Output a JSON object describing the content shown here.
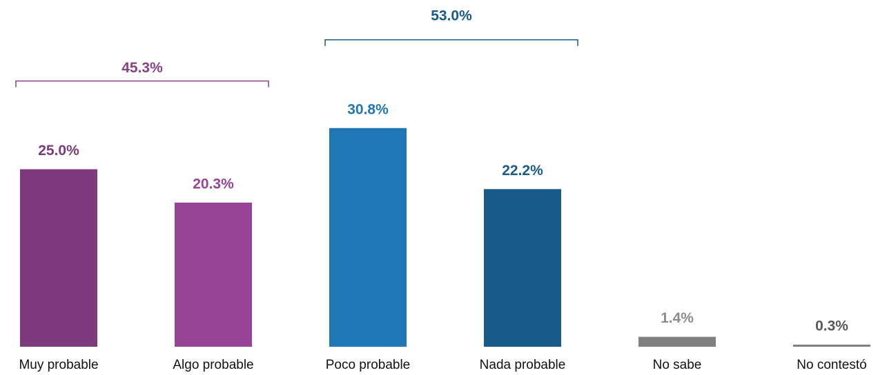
{
  "chart_data": {
    "type": "bar",
    "categories": [
      "Muy probable",
      "Algo probable",
      "Poco probable",
      "Nada probable",
      "No sabe",
      "No contestó"
    ],
    "values": [
      25.0,
      20.3,
      30.8,
      22.2,
      1.4,
      0.3
    ],
    "value_labels": [
      "25.0%",
      "20.3%",
      "30.8%",
      "22.2%",
      "1.4%",
      "0.3%"
    ],
    "colors": [
      "#7d3a7d",
      "#974497",
      "#1f77b6",
      "#185a88",
      "#808080",
      "#808080"
    ],
    "label_colors": [
      "#7d3a7d",
      "#974497",
      "#1f77b6",
      "#185a88",
      "#8c8c8c",
      "#595959"
    ],
    "groups": [
      {
        "value": 45.3,
        "label": "45.3%",
        "start": 0,
        "end": 1,
        "color": "#8a3f8a"
      },
      {
        "value": 53.0,
        "label": "53.0%",
        "start": 2,
        "end": 3,
        "color": "#185a88"
      }
    ]
  }
}
